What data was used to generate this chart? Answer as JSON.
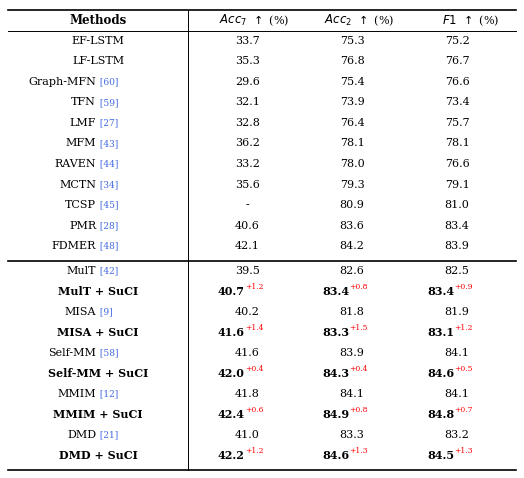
{
  "section1": [
    {
      "method": "EF-LSTM",
      "ref": "",
      "acc7": "33.7",
      "acc2": "75.3",
      "f1": "75.2"
    },
    {
      "method": "LF-LSTM",
      "ref": "",
      "acc7": "35.3",
      "acc2": "76.8",
      "f1": "76.7"
    },
    {
      "method": "Graph-MFN",
      "ref": "60",
      "acc7": "29.6",
      "acc2": "75.4",
      "f1": "76.6"
    },
    {
      "method": "TFN",
      "ref": "59",
      "acc7": "32.1",
      "acc2": "73.9",
      "f1": "73.4"
    },
    {
      "method": "LMF",
      "ref": "27",
      "acc7": "32.8",
      "acc2": "76.4",
      "f1": "75.7"
    },
    {
      "method": "MFM",
      "ref": "43",
      "acc7": "36.2",
      "acc2": "78.1",
      "f1": "78.1"
    },
    {
      "method": "RAVEN",
      "ref": "44",
      "acc7": "33.2",
      "acc2": "78.0",
      "f1": "76.6"
    },
    {
      "method": "MCTN",
      "ref": "34",
      "acc7": "35.6",
      "acc2": "79.3",
      "f1": "79.1"
    },
    {
      "method": "TCSP",
      "ref": "45",
      "acc7": "-",
      "acc2": "80.9",
      "f1": "81.0"
    },
    {
      "method": "PMR",
      "ref": "28",
      "acc7": "40.6",
      "acc2": "83.6",
      "f1": "83.4"
    },
    {
      "method": "FDMER",
      "ref": "48",
      "acc7": "42.1",
      "acc2": "84.2",
      "f1": "83.9"
    }
  ],
  "section2": [
    {
      "method": "MulT",
      "ref": "42",
      "acc7": "39.5",
      "acc7_sup": "",
      "acc2": "82.6",
      "acc2_sup": "",
      "f1": "82.5",
      "f1_sup": "",
      "bold": false
    },
    {
      "method": "MulT + SuCI",
      "ref": "",
      "acc7": "40.7",
      "acc7_sup": "+1.2",
      "acc2": "83.4",
      "acc2_sup": "+0.8",
      "f1": "83.4",
      "f1_sup": "+0.9",
      "bold": true
    },
    {
      "method": "MISA",
      "ref": "9",
      "acc7": "40.2",
      "acc7_sup": "",
      "acc2": "81.8",
      "acc2_sup": "",
      "f1": "81.9",
      "f1_sup": "",
      "bold": false
    },
    {
      "method": "MISA + SuCI",
      "ref": "",
      "acc7": "41.6",
      "acc7_sup": "+1.4",
      "acc2": "83.3",
      "acc2_sup": "+1.5",
      "f1": "83.1",
      "f1_sup": "+1.2",
      "bold": true
    },
    {
      "method": "Self-MM",
      "ref": "58",
      "acc7": "41.6",
      "acc7_sup": "",
      "acc2": "83.9",
      "acc2_sup": "",
      "f1": "84.1",
      "f1_sup": "",
      "bold": false
    },
    {
      "method": "Self-MM + SuCI",
      "ref": "",
      "acc7": "42.0",
      "acc7_sup": "+0.4",
      "acc2": "84.3",
      "acc2_sup": "+0.4",
      "f1": "84.6",
      "f1_sup": "+0.5",
      "bold": true
    },
    {
      "method": "MMIM",
      "ref": "12",
      "acc7": "41.8",
      "acc7_sup": "",
      "acc2": "84.1",
      "acc2_sup": "",
      "f1": "84.1",
      "f1_sup": "",
      "bold": false
    },
    {
      "method": "MMIM + SuCI",
      "ref": "",
      "acc7": "42.4",
      "acc7_sup": "+0.6",
      "acc2": "84.9",
      "acc2_sup": "+0.8",
      "f1": "84.8",
      "f1_sup": "+0.7",
      "bold": true
    },
    {
      "method": "DMD",
      "ref": "21",
      "acc7": "41.0",
      "acc7_sup": "",
      "acc2": "83.3",
      "acc2_sup": "",
      "f1": "83.2",
      "f1_sup": "",
      "bold": false
    },
    {
      "method": "DMD + SuCI",
      "ref": "",
      "acc7": "42.2",
      "acc7_sup": "+1.2",
      "acc2": "84.6",
      "acc2_sup": "+1.3",
      "f1": "84.5",
      "f1_sup": "+1.3",
      "bold": true
    }
  ],
  "blue": "#4169E1",
  "red": "#FF0000",
  "figw": 5.24,
  "figh": 4.78,
  "dpi": 100
}
